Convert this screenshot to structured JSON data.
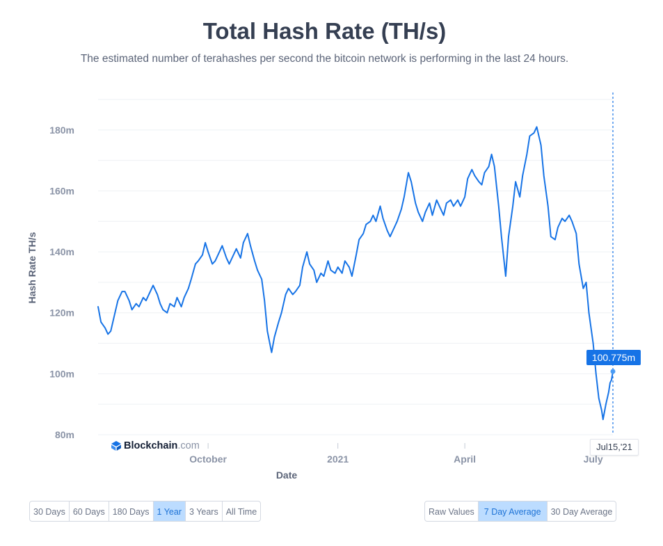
{
  "header": {
    "title": "Total Hash Rate (TH/s)",
    "subtitle": "The estimated number of terahashes per second the bitcoin network is performing in the last 24 hours."
  },
  "brand": {
    "name": "Blockchain",
    "suffix": ".com"
  },
  "tooltip": {
    "value": "100.775m",
    "date": "Jul15,'21"
  },
  "time_buttons": [
    {
      "label": "30 Days",
      "active": false
    },
    {
      "label": "60 Days",
      "active": false
    },
    {
      "label": "180 Days",
      "active": false
    },
    {
      "label": "1 Year",
      "active": true
    },
    {
      "label": "3 Years",
      "active": false
    },
    {
      "label": "All Time",
      "active": false
    }
  ],
  "mode_buttons": [
    {
      "label": "Raw Values",
      "active": false
    },
    {
      "label": "7 Day Average",
      "active": true
    },
    {
      "label": "30 Day Average",
      "active": false
    }
  ],
  "chart_data": {
    "type": "line",
    "xlabel": "Date",
    "ylabel": "Hash Rate TH/s",
    "ylim": [
      80,
      190
    ],
    "yticks": [
      80,
      100,
      120,
      140,
      160,
      180
    ],
    "ytick_labels": [
      "80m",
      "100m",
      "120m",
      "140m",
      "160m",
      "180m"
    ],
    "xlim": [
      "2020-07-15",
      "2021-07-15"
    ],
    "xticks": [
      {
        "date": "2020-10-01",
        "label": "October"
      },
      {
        "date": "2021-01-01",
        "label": "2021"
      },
      {
        "date": "2021-04-01",
        "label": "April"
      },
      {
        "date": "2021-07-01",
        "label": "July"
      }
    ],
    "line_color": "#1673e6",
    "grid": true,
    "series": [
      {
        "values": [
          [
            "2020-07-15",
            122
          ],
          [
            "2020-07-17",
            117
          ],
          [
            "2020-07-20",
            115
          ],
          [
            "2020-07-22",
            113
          ],
          [
            "2020-07-24",
            114
          ],
          [
            "2020-07-27",
            120
          ],
          [
            "2020-07-29",
            124
          ],
          [
            "2020-08-01",
            127
          ],
          [
            "2020-08-03",
            127
          ],
          [
            "2020-08-06",
            124
          ],
          [
            "2020-08-08",
            121
          ],
          [
            "2020-08-11",
            123
          ],
          [
            "2020-08-13",
            122
          ],
          [
            "2020-08-16",
            125
          ],
          [
            "2020-08-18",
            124
          ],
          [
            "2020-08-21",
            127
          ],
          [
            "2020-08-23",
            129
          ],
          [
            "2020-08-26",
            126
          ],
          [
            "2020-08-28",
            123
          ],
          [
            "2020-08-30",
            121
          ],
          [
            "2020-09-02",
            120
          ],
          [
            "2020-09-04",
            123
          ],
          [
            "2020-09-07",
            122
          ],
          [
            "2020-09-09",
            125
          ],
          [
            "2020-09-12",
            122
          ],
          [
            "2020-09-14",
            125
          ],
          [
            "2020-09-17",
            128
          ],
          [
            "2020-09-19",
            131
          ],
          [
            "2020-09-22",
            136
          ],
          [
            "2020-09-24",
            137
          ],
          [
            "2020-09-27",
            139
          ],
          [
            "2020-09-29",
            143
          ],
          [
            "2020-10-01",
            140
          ],
          [
            "2020-10-04",
            136
          ],
          [
            "2020-10-06",
            137
          ],
          [
            "2020-10-09",
            140
          ],
          [
            "2020-10-11",
            142
          ],
          [
            "2020-10-14",
            138
          ],
          [
            "2020-10-16",
            136
          ],
          [
            "2020-10-19",
            139
          ],
          [
            "2020-10-21",
            141
          ],
          [
            "2020-10-24",
            138
          ],
          [
            "2020-10-26",
            143
          ],
          [
            "2020-10-29",
            146
          ],
          [
            "2020-10-31",
            142
          ],
          [
            "2020-11-03",
            137
          ],
          [
            "2020-11-05",
            134
          ],
          [
            "2020-11-08",
            131
          ],
          [
            "2020-11-10",
            124
          ],
          [
            "2020-11-12",
            114
          ],
          [
            "2020-11-15",
            107
          ],
          [
            "2020-11-17",
            112
          ],
          [
            "2020-11-20",
            117
          ],
          [
            "2020-11-22",
            120
          ],
          [
            "2020-11-25",
            126
          ],
          [
            "2020-11-27",
            128
          ],
          [
            "2020-11-30",
            126
          ],
          [
            "2020-12-02",
            127
          ],
          [
            "2020-12-05",
            129
          ],
          [
            "2020-12-07",
            135
          ],
          [
            "2020-12-10",
            140
          ],
          [
            "2020-12-12",
            136
          ],
          [
            "2020-12-15",
            134
          ],
          [
            "2020-12-17",
            130
          ],
          [
            "2020-12-20",
            133
          ],
          [
            "2020-12-22",
            132
          ],
          [
            "2020-12-25",
            137
          ],
          [
            "2020-12-27",
            134
          ],
          [
            "2020-12-30",
            133
          ],
          [
            "2021-01-01",
            135
          ],
          [
            "2021-01-04",
            133
          ],
          [
            "2021-01-06",
            137
          ],
          [
            "2021-01-09",
            135
          ],
          [
            "2021-01-11",
            132
          ],
          [
            "2021-01-14",
            139
          ],
          [
            "2021-01-16",
            144
          ],
          [
            "2021-01-19",
            146
          ],
          [
            "2021-01-21",
            149
          ],
          [
            "2021-01-24",
            150
          ],
          [
            "2021-01-26",
            152
          ],
          [
            "2021-01-28",
            150
          ],
          [
            "2021-01-31",
            155
          ],
          [
            "2021-02-02",
            151
          ],
          [
            "2021-02-05",
            147
          ],
          [
            "2021-02-07",
            145
          ],
          [
            "2021-02-10",
            148
          ],
          [
            "2021-02-12",
            150
          ],
          [
            "2021-02-15",
            154
          ],
          [
            "2021-02-17",
            158
          ],
          [
            "2021-02-20",
            166
          ],
          [
            "2021-02-22",
            163
          ],
          [
            "2021-02-25",
            156
          ],
          [
            "2021-02-27",
            153
          ],
          [
            "2021-03-02",
            150
          ],
          [
            "2021-03-04",
            153
          ],
          [
            "2021-03-07",
            156
          ],
          [
            "2021-03-09",
            152
          ],
          [
            "2021-03-12",
            157
          ],
          [
            "2021-03-14",
            155
          ],
          [
            "2021-03-17",
            152
          ],
          [
            "2021-03-19",
            156
          ],
          [
            "2021-03-22",
            157
          ],
          [
            "2021-03-24",
            155
          ],
          [
            "2021-03-27",
            157
          ],
          [
            "2021-03-29",
            155
          ],
          [
            "2021-04-01",
            158
          ],
          [
            "2021-04-03",
            164
          ],
          [
            "2021-04-06",
            167
          ],
          [
            "2021-04-08",
            165
          ],
          [
            "2021-04-11",
            163
          ],
          [
            "2021-04-13",
            162
          ],
          [
            "2021-04-15",
            166
          ],
          [
            "2021-04-18",
            168
          ],
          [
            "2021-04-20",
            172
          ],
          [
            "2021-04-22",
            168
          ],
          [
            "2021-04-25",
            155
          ],
          [
            "2021-04-27",
            145
          ],
          [
            "2021-04-30",
            132
          ],
          [
            "2021-05-02",
            145
          ],
          [
            "2021-05-05",
            155
          ],
          [
            "2021-05-07",
            163
          ],
          [
            "2021-05-10",
            158
          ],
          [
            "2021-05-12",
            165
          ],
          [
            "2021-05-15",
            172
          ],
          [
            "2021-05-17",
            178
          ],
          [
            "2021-05-20",
            179
          ],
          [
            "2021-05-22",
            181
          ],
          [
            "2021-05-25",
            175
          ],
          [
            "2021-05-27",
            165
          ],
          [
            "2021-05-30",
            155
          ],
          [
            "2021-06-01",
            145
          ],
          [
            "2021-06-04",
            144
          ],
          [
            "2021-06-06",
            148
          ],
          [
            "2021-06-09",
            151
          ],
          [
            "2021-06-11",
            150
          ],
          [
            "2021-06-14",
            152
          ],
          [
            "2021-06-16",
            150
          ],
          [
            "2021-06-19",
            146
          ],
          [
            "2021-06-21",
            136
          ],
          [
            "2021-06-24",
            128
          ],
          [
            "2021-06-26",
            130
          ],
          [
            "2021-06-28",
            120
          ],
          [
            "2021-07-01",
            110
          ],
          [
            "2021-07-03",
            100
          ],
          [
            "2021-07-05",
            92
          ],
          [
            "2021-07-07",
            88
          ],
          [
            "2021-07-08",
            85
          ],
          [
            "2021-07-10",
            90
          ],
          [
            "2021-07-12",
            94
          ],
          [
            "2021-07-13",
            97
          ],
          [
            "2021-07-14",
            98
          ],
          [
            "2021-07-15",
            100.775
          ]
        ]
      }
    ]
  }
}
